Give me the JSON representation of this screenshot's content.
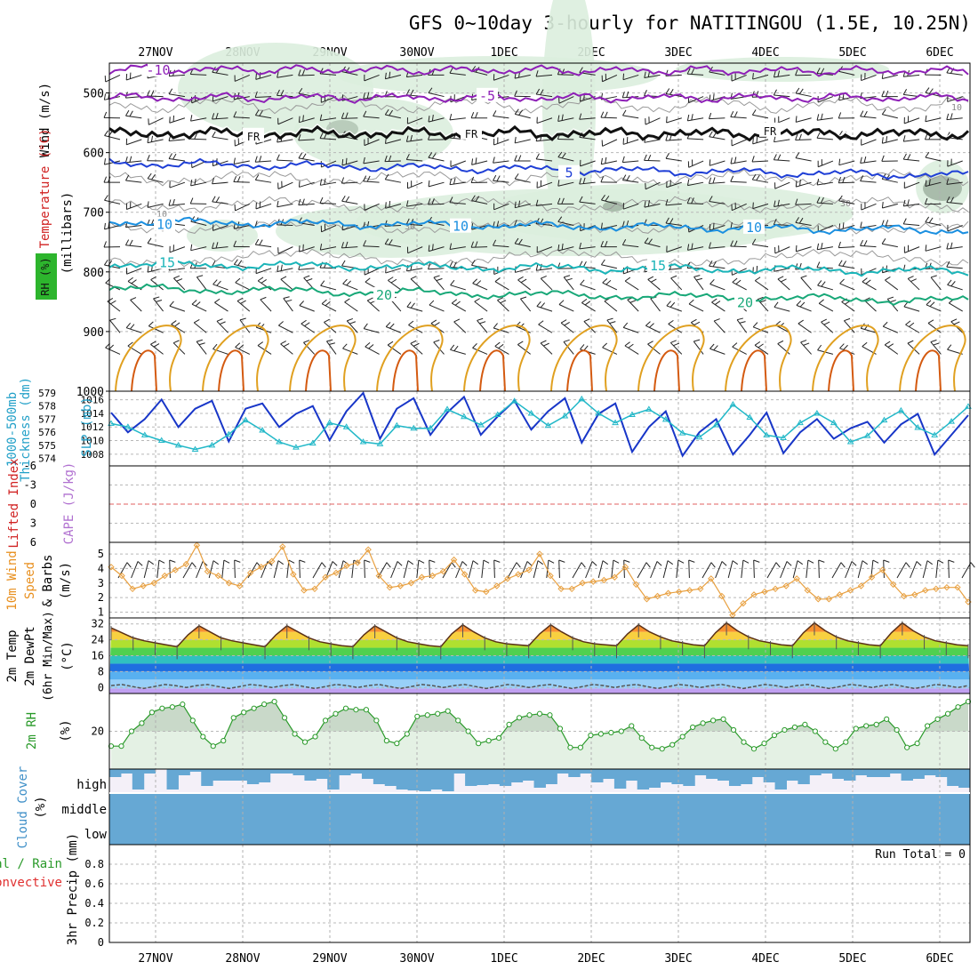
{
  "title": "GFS 0~10day 3-hourly for NATITINGOU (1.5E, 10.25N)",
  "dates": [
    "27NOV",
    "28NOV",
    "29NOV",
    "30NOV",
    "1DEC",
    "2DEC",
    "3DEC",
    "4DEC",
    "5DEC",
    "6DEC"
  ],
  "chart_data": {
    "type": "meteogram",
    "time": {
      "start_day": 0,
      "end_day": 9.78,
      "step_hours": 3
    },
    "panels": [
      {
        "id": "upper_air",
        "labels": [
          "Wind (m/s)",
          "Temperature (°C)",
          "(millibars)",
          "RH (%)"
        ],
        "ylim": [
          1000,
          450
        ],
        "yticks": [
          "500",
          "600",
          "700",
          "800",
          "900",
          "1000"
        ],
        "isotherms": [
          {
            "label": "-10",
            "p": 462,
            "color": "#8e1fb7"
          },
          {
            "label": "-5",
            "p": 508,
            "color": "#8e1fb7"
          },
          {
            "label": "FR",
            "p": 568,
            "color": "#111111"
          },
          {
            "label": "5",
            "p": 628,
            "color": "#1f3fd6"
          },
          {
            "label": "10",
            "p": 723,
            "color": "#1a8fe0"
          },
          {
            "label": "15",
            "p": 793,
            "color": "#1ab4b8"
          },
          {
            "label": "20",
            "p": 838,
            "color": "#18a878"
          }
        ],
        "isotherm_labels": [
          "-10",
          "-5",
          "FR",
          "5",
          "10",
          "15",
          "20"
        ],
        "rh_labels": [
          "10",
          "30",
          "30",
          "10"
        ]
      },
      {
        "id": "thickness_slp",
        "labels": [
          "1000-500mb",
          "Thickness (dm)",
          "SLP (mb)"
        ],
        "thickness_ticks": [
          "579",
          "578",
          "577",
          "576",
          "575",
          "574"
        ],
        "slp_ticks": [
          "1016",
          "1014",
          "1012",
          "1010",
          "1008"
        ],
        "thickness_ylim": [
          573.7,
          579
        ],
        "slp_ylim": [
          1006.8,
          1017
        ],
        "thickness_dm": [
          577.5,
          576.0,
          577.0,
          578.5,
          576.4,
          577.8,
          578.4,
          575.3,
          577.8,
          578.2,
          576.4,
          577.4,
          578.0,
          575.4,
          577.6,
          579.0,
          575.5,
          577.8,
          578.6,
          575.8,
          577.5,
          578.7,
          575.8,
          577.2,
          578.4,
          576.2,
          577.6,
          578.6,
          575.2,
          577.4,
          578.2,
          574.5,
          576.4,
          577.6,
          574.2,
          576.0,
          577.0,
          574.3,
          575.8,
          577.5,
          574.4,
          576.0,
          577.0,
          575.5,
          576.3,
          576.8,
          575.2,
          576.6,
          577.4,
          574.3,
          575.8,
          577.3
        ],
        "slp_mb": [
          1012.5,
          1012.0,
          1010.8,
          1010.0,
          1009.3,
          1008.7,
          1009.3,
          1010.9,
          1013.0,
          1011.5,
          1009.8,
          1009.0,
          1009.6,
          1012.6,
          1012.0,
          1009.8,
          1009.5,
          1012.2,
          1011.8,
          1011.8,
          1014.6,
          1013.5,
          1012.3,
          1013.8,
          1015.8,
          1014.0,
          1012.2,
          1013.6,
          1016.1,
          1014.0,
          1012.6,
          1013.8,
          1014.6,
          1013.1,
          1011.1,
          1010.5,
          1012.3,
          1015.3,
          1013.4,
          1010.8,
          1010.4,
          1012.6,
          1014.0,
          1012.6,
          1009.8,
          1010.7,
          1013.0,
          1014.4,
          1011.9,
          1010.8,
          1012.8,
          1015.0
        ]
      },
      {
        "id": "stability",
        "labels": [
          "Lifted Index",
          "CAPE (J/kg)"
        ],
        "yticks": [
          "-6",
          "-3",
          "0",
          "3",
          "6"
        ]
      },
      {
        "id": "wind10m",
        "labels": [
          "10m Wind",
          "Speed",
          "& Barbs",
          "(m/s)"
        ],
        "yticks": [
          "1",
          "2",
          "3",
          "4",
          "5"
        ],
        "ylim": [
          0.6,
          5.8
        ],
        "speed_ms": [
          4.1,
          3.5,
          2.6,
          2.8,
          3.0,
          3.5,
          3.9,
          4.3,
          5.6,
          3.8,
          3.5,
          3.0,
          2.8,
          3.7,
          4.1,
          4.5,
          5.5,
          3.6,
          2.5,
          2.6,
          3.4,
          3.7,
          4.2,
          4.4,
          5.3,
          3.5,
          2.7,
          2.8,
          3.0,
          3.4,
          3.5,
          3.8,
          4.6,
          3.6,
          2.5,
          2.4,
          2.8,
          3.3,
          3.6,
          3.9,
          5.0,
          3.5,
          2.6,
          2.6,
          3.0,
          3.1,
          3.2,
          3.4,
          4.1,
          2.9,
          1.9,
          2.1,
          2.3,
          2.4,
          2.5,
          2.6,
          3.3,
          2.1,
          0.8,
          1.6,
          2.2,
          2.4,
          2.6,
          2.8,
          3.3,
          2.5,
          1.9,
          1.9,
          2.2,
          2.5,
          2.8,
          3.4,
          3.9,
          2.9,
          2.1,
          2.2,
          2.5,
          2.6,
          2.7,
          2.7,
          1.7
        ]
      },
      {
        "id": "temp2m",
        "labels": [
          "2m Temp",
          "2m DewPt",
          "(6hr Min/Max)",
          "(°C)"
        ],
        "yticks": [
          "0",
          "8",
          "16",
          "24",
          "32"
        ],
        "ylim": [
          -3,
          35
        ],
        "temp_c": [
          30.0,
          27.5,
          25.0,
          23.5,
          22.5,
          21.5,
          20.5,
          26.5,
          31.0,
          28.0,
          25.0,
          23.5,
          22.5,
          21.5,
          20.5,
          26.5,
          31.0,
          28.0,
          25.0,
          23.0,
          22.0,
          21.0,
          20.5,
          26.5,
          31.0,
          28.0,
          25.0,
          23.0,
          22.0,
          21.0,
          20.5,
          27.0,
          31.5,
          28.0,
          25.0,
          23.0,
          22.0,
          21.5,
          21.0,
          27.0,
          31.5,
          28.0,
          25.0,
          23.0,
          22.0,
          21.5,
          21.0,
          27.0,
          31.5,
          28.0,
          25.5,
          23.5,
          22.5,
          21.5,
          21.0,
          27.5,
          32.5,
          28.5,
          25.5,
          23.5,
          22.5,
          21.5,
          21.0,
          27.5,
          32.5,
          28.5,
          25.5,
          23.5,
          22.5,
          21.5,
          21.0,
          27.5,
          32.5,
          28.5,
          25.5,
          23.5,
          22.5,
          21.5,
          21.0
        ],
        "dewpoint_c": [
          1.0,
          1.5,
          0.5,
          -0.5,
          0.5,
          1.5,
          1.0,
          0.0,
          1.0,
          1.5,
          0.5,
          -0.5,
          0.5,
          1.5,
          1.0,
          0.0,
          1.0,
          1.5,
          0.5,
          -0.5,
          0.5,
          1.5,
          1.0,
          0.0,
          1.0,
          1.5,
          0.5,
          -0.5,
          0.5,
          1.5,
          1.0,
          0.0,
          1.0,
          1.5,
          0.5,
          -0.5,
          0.5,
          1.5,
          1.0,
          0.0,
          1.0,
          1.5,
          0.5,
          -0.5,
          0.5,
          1.5,
          1.0,
          0.0,
          1.0,
          1.5,
          0.5,
          -0.5,
          0.5,
          1.5,
          1.0,
          0.0,
          1.0,
          1.5,
          0.5,
          -0.5,
          0.5,
          1.5,
          1.0,
          0.0,
          1.0,
          1.5,
          0.5,
          -0.5,
          0.5,
          1.5,
          1.0,
          0.0,
          1.0,
          1.5,
          0.5,
          -0.5,
          0.5,
          1.5,
          1.0,
          0.0,
          1.0
        ]
      },
      {
        "id": "rh2m",
        "labels": [
          "2m RH",
          "(%)"
        ],
        "yticks": [
          "20"
        ],
        "ylim": [
          6,
          34
        ],
        "rh_pct": [
          14.5,
          14.5,
          20.0,
          23.0,
          27.0,
          28.5,
          29.0,
          30.0,
          24.0,
          18.0,
          14.5,
          16.5,
          25.0,
          27.0,
          28.5,
          30.0,
          31.0,
          25.0,
          19.0,
          16.0,
          18.0,
          24.0,
          26.5,
          28.5,
          28.0,
          28.0,
          24.0,
          16.5,
          15.5,
          19.0,
          25.5,
          26.0,
          26.5,
          27.5,
          24.0,
          20.0,
          15.5,
          16.5,
          17.5,
          22.5,
          25.0,
          26.0,
          26.5,
          26.0,
          21.0,
          14.0,
          14.0,
          18.5,
          19.0,
          19.5,
          20.0,
          22.0,
          17.5,
          14.0,
          13.5,
          15.0,
          18.0,
          21.5,
          23.0,
          24.0,
          24.5,
          20.5,
          16.0,
          13.5,
          15.5,
          18.5,
          20.5,
          21.5,
          22.5,
          20.0,
          16.0,
          13.5,
          16.0,
          21.0,
          22.0,
          22.5,
          24.5,
          20.5,
          14.0,
          15.5,
          22.0,
          24.5,
          26.5,
          29.0,
          31.0
        ]
      },
      {
        "id": "cloud",
        "labels": [
          "Cloud Cover",
          "(%)"
        ],
        "levels": [
          "high",
          "middle",
          "low"
        ]
      },
      {
        "id": "precip",
        "labels": [
          "Total / Rain",
          "Convective",
          "3hr Precip (mm)"
        ],
        "yticks": [
          "0",
          "0.2",
          "0.4",
          "0.6",
          "0.8"
        ],
        "ylim": [
          0,
          1
        ],
        "run_total_label": "Run Total = 0"
      }
    ]
  }
}
